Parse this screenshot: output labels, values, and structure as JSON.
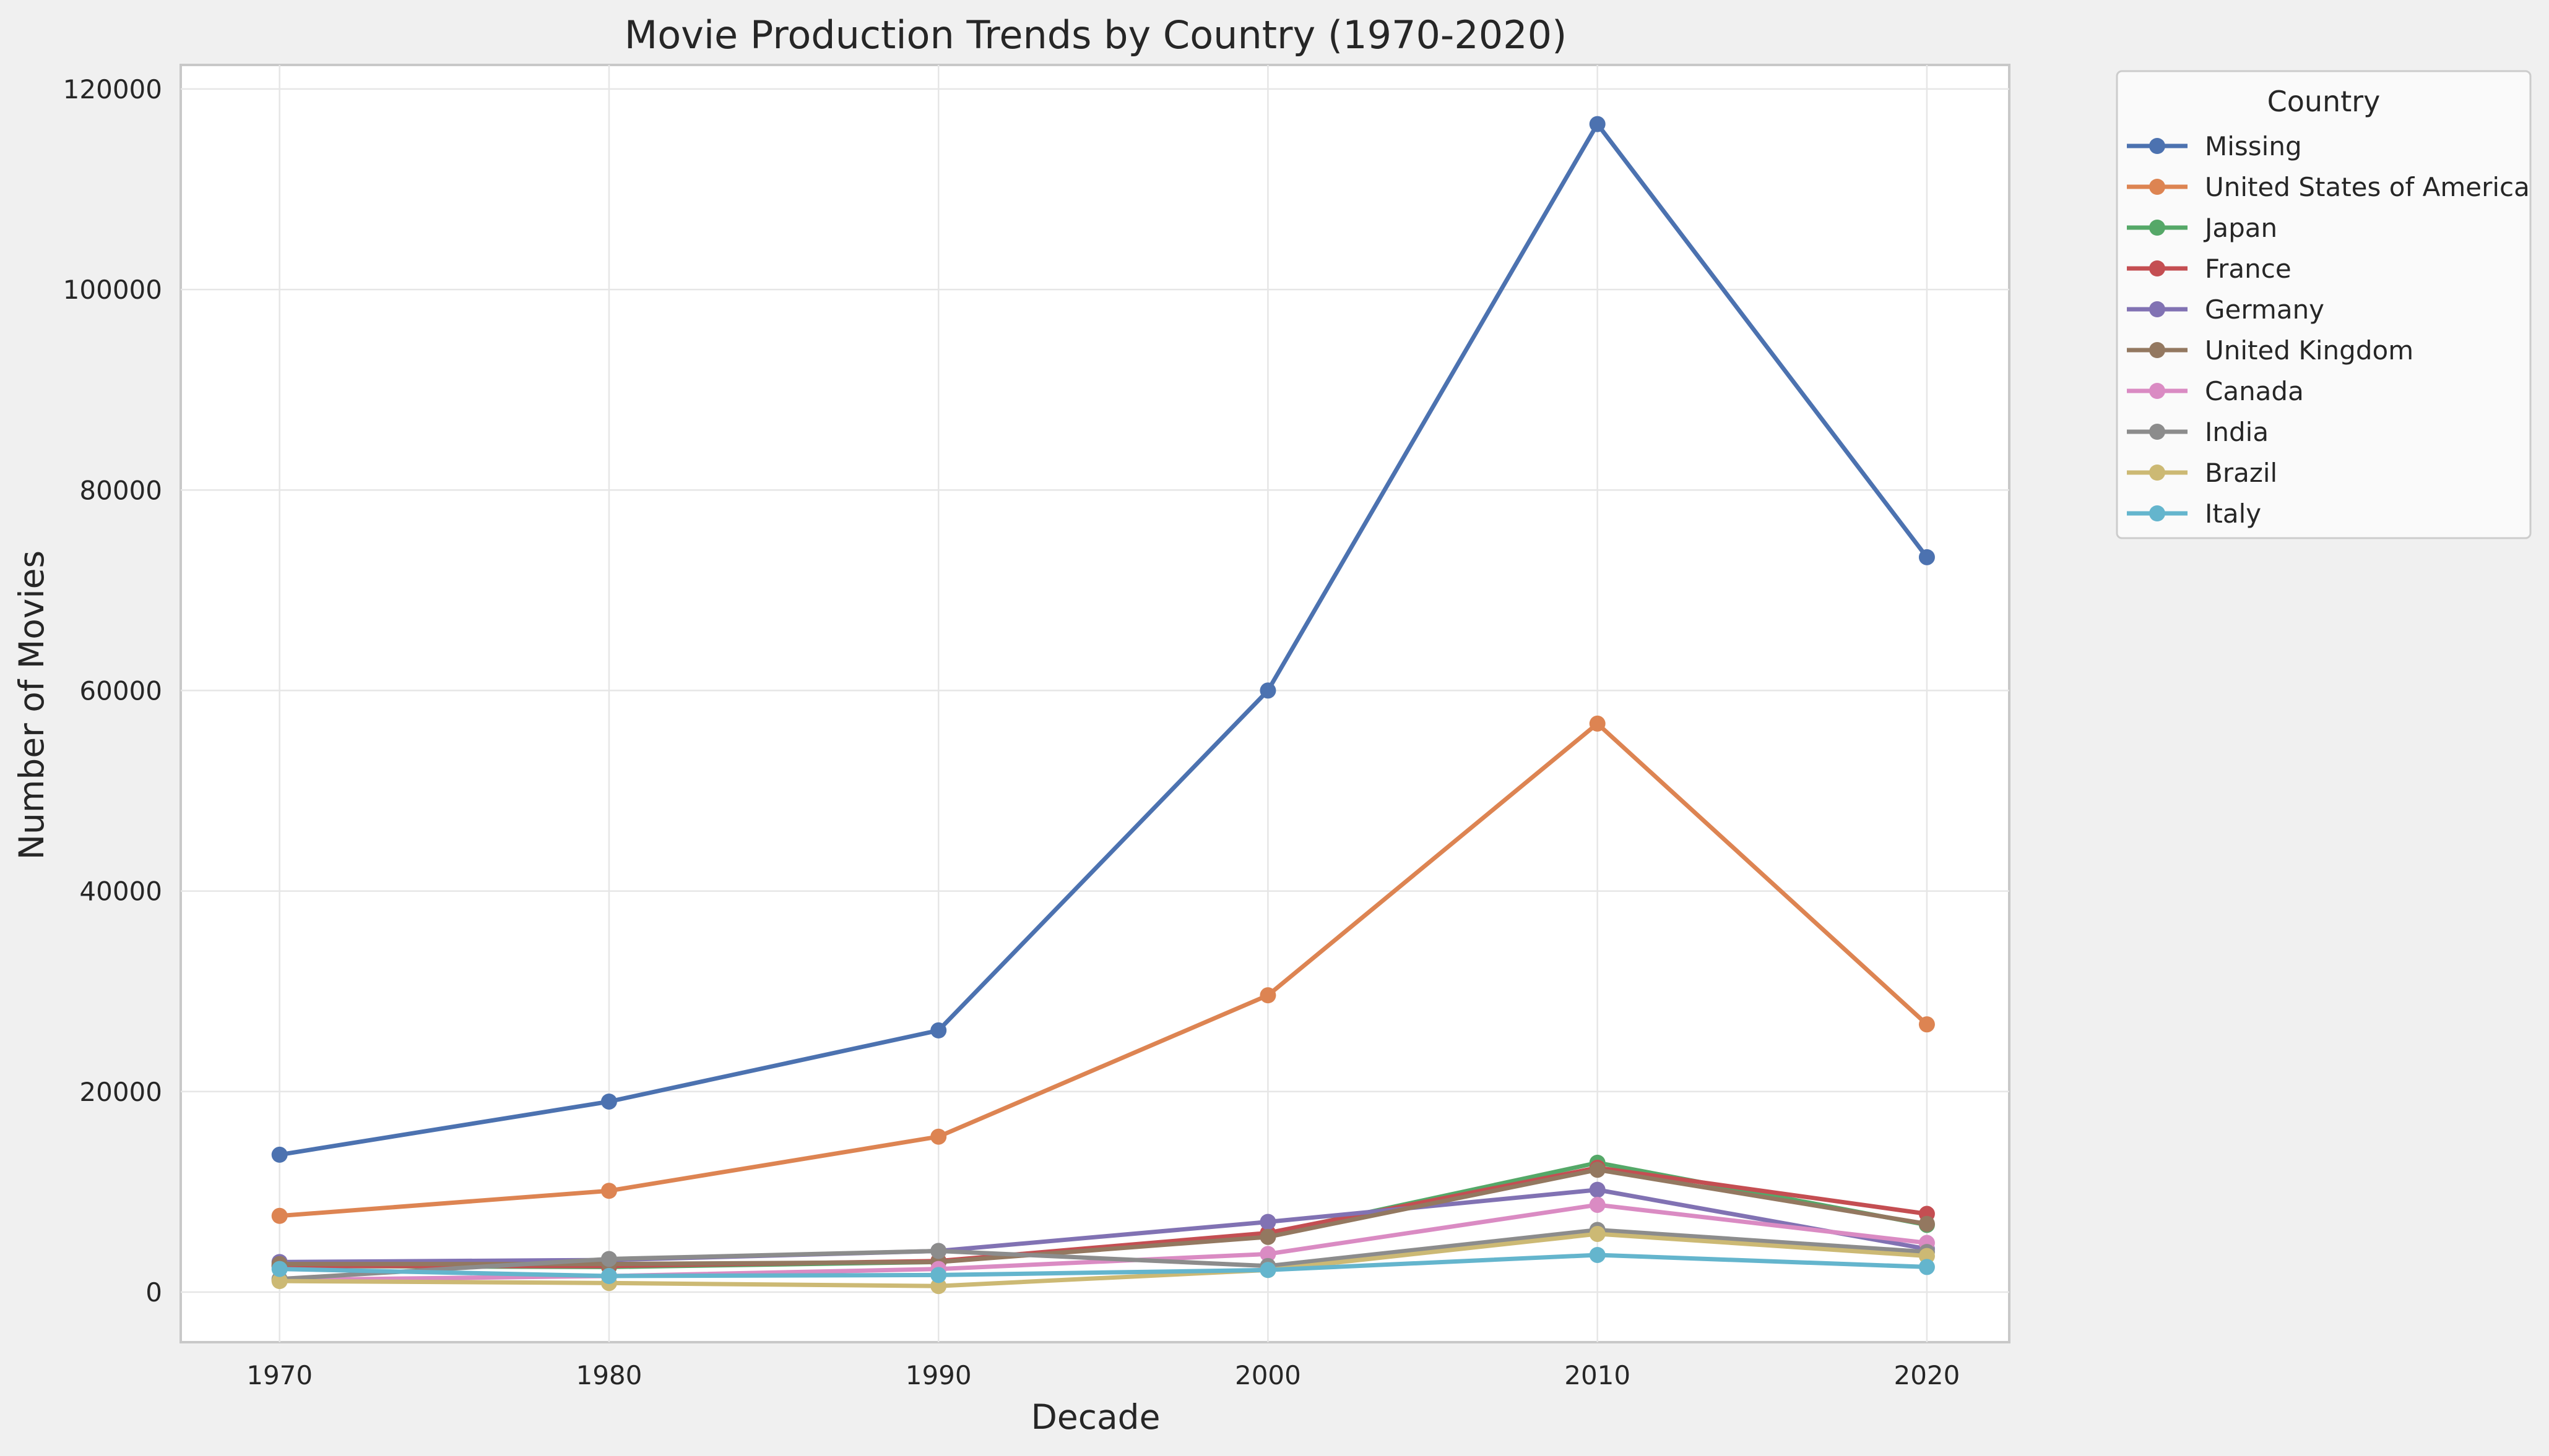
{
  "chart_data": {
    "type": "line",
    "title": "Movie Production Trends by Country (1970-2020)",
    "xlabel": "Decade",
    "ylabel": "Number of Movies",
    "x": [
      1970,
      1980,
      1990,
      2000,
      2010,
      2020
    ],
    "x_ticks": [
      "1970",
      "1980",
      "1990",
      "2000",
      "2010",
      "2020"
    ],
    "xlim": [
      1967,
      2022.5
    ],
    "ylim": [
      -5000,
      122400
    ],
    "y_ticks": [
      "0",
      "20000",
      "40000",
      "60000",
      "80000",
      "100000",
      "120000"
    ],
    "grid": true,
    "legend": {
      "title": "Country",
      "position": "outside-top-right"
    },
    "series": [
      {
        "name": "Missing",
        "color": "#4c72b0",
        "values": [
          13700,
          19000,
          26100,
          60000,
          116500,
          73300
        ]
      },
      {
        "name": "United States of America",
        "color": "#dd8452",
        "values": [
          7600,
          10100,
          15500,
          29600,
          56700,
          26700
        ]
      },
      {
        "name": "Japan",
        "color": "#55a868",
        "values": [
          2600,
          2500,
          3000,
          5800,
          12900,
          6700
        ]
      },
      {
        "name": "France",
        "color": "#c44e52",
        "values": [
          2600,
          2600,
          3100,
          5900,
          12400,
          7800
        ]
      },
      {
        "name": "Germany",
        "color": "#8172b3",
        "values": [
          3000,
          3200,
          4100,
          7000,
          10200,
          4300
        ]
      },
      {
        "name": "United Kingdom",
        "color": "#937860",
        "values": [
          2800,
          2800,
          3000,
          5500,
          12200,
          6800
        ]
      },
      {
        "name": "Canada",
        "color": "#da8bc3",
        "values": [
          1200,
          1600,
          2300,
          3800,
          8700,
          4900
        ]
      },
      {
        "name": "India",
        "color": "#8c8c8c",
        "values": [
          1300,
          3300,
          4100,
          2600,
          6200,
          4000
        ]
      },
      {
        "name": "Brazil",
        "color": "#ccb974",
        "values": [
          1100,
          900,
          600,
          2200,
          5800,
          3600
        ]
      },
      {
        "name": "Italy",
        "color": "#64b5cd",
        "values": [
          2300,
          1600,
          1700,
          2200,
          3700,
          2500
        ]
      }
    ]
  }
}
